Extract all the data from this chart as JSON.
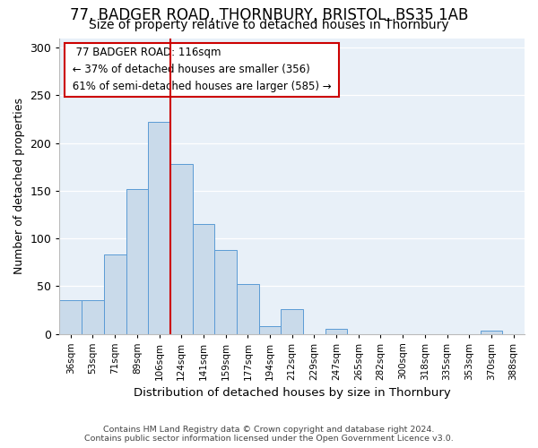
{
  "title1": "77, BADGER ROAD, THORNBURY, BRISTOL, BS35 1AB",
  "title2": "Size of property relative to detached houses in Thornbury",
  "xlabel": "Distribution of detached houses by size in Thornbury",
  "ylabel": "Number of detached properties",
  "annotation_line1": "77 BADGER ROAD: 116sqm",
  "annotation_line2": "← 37% of detached houses are smaller (356)",
  "annotation_line3": "61% of semi-detached houses are larger (585) →",
  "categories": [
    "36sqm",
    "53sqm",
    "71sqm",
    "89sqm",
    "106sqm",
    "124sqm",
    "141sqm",
    "159sqm",
    "177sqm",
    "194sqm",
    "212sqm",
    "229sqm",
    "247sqm",
    "265sqm",
    "282sqm",
    "300sqm",
    "318sqm",
    "335sqm",
    "353sqm",
    "370sqm",
    "388sqm"
  ],
  "values": [
    35,
    35,
    83,
    152,
    222,
    178,
    115,
    88,
    52,
    8,
    26,
    0,
    5,
    0,
    0,
    0,
    0,
    0,
    0,
    3,
    0
  ],
  "bar_color": "#c9daea",
  "bar_edge_color": "#5b9bd5",
  "red_line_x": 5,
  "red_line_color": "#cc0000",
  "annotation_box_edge": "#cc0000",
  "background_color": "#ffffff",
  "plot_bg_color": "#e8f0f8",
  "footer1": "Contains HM Land Registry data © Crown copyright and database right 2024.",
  "footer2": "Contains public sector information licensed under the Open Government Licence v3.0.",
  "ylim": [
    0,
    310
  ],
  "title1_fontsize": 12,
  "title2_fontsize": 10,
  "grid_color": "#ffffff"
}
